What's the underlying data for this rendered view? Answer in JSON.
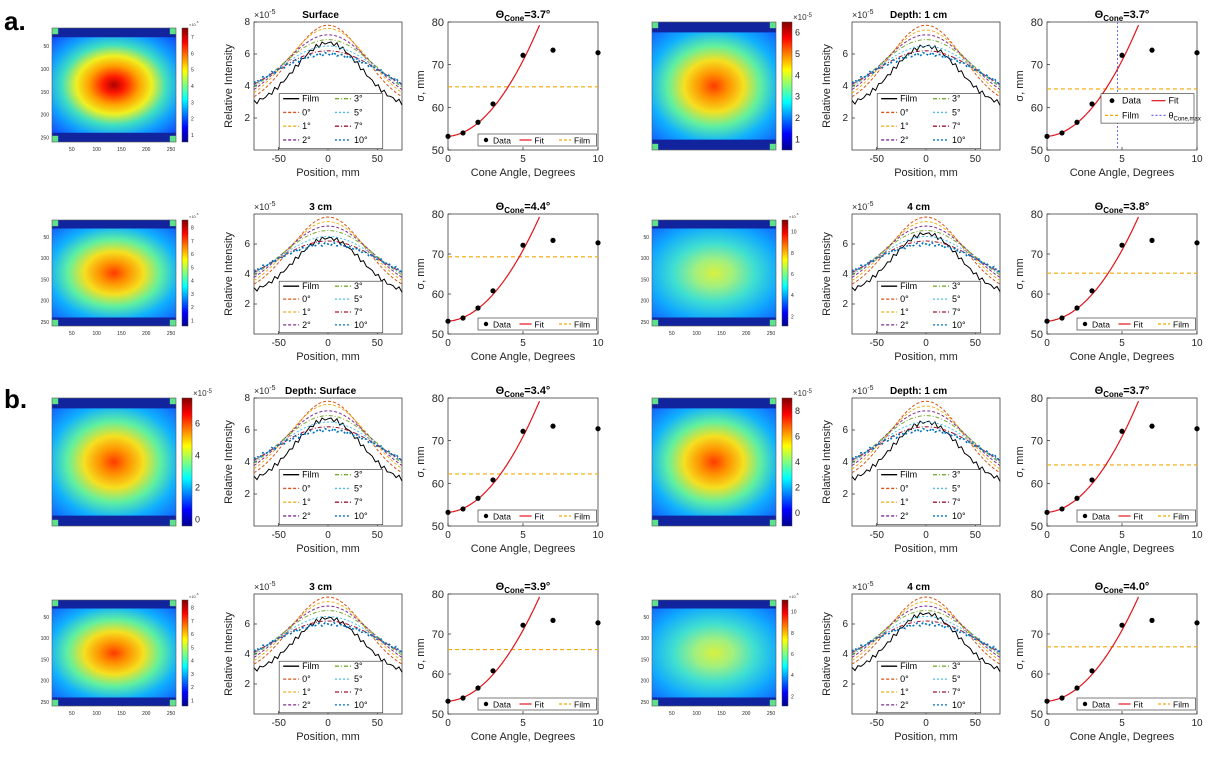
{
  "panel_labels": [
    "a.",
    "b."
  ],
  "axis_labels": {
    "profile_x": "Position, mm",
    "profile_y": "Relative Intensity",
    "profile_scale": "×10",
    "profile_scale_exp": "-5",
    "fit_x": "Cone Angle, Degrees",
    "fit_y": "σ, mm",
    "theta_prefix": "Θ",
    "theta_sub": "Cone",
    "theta_max_sub": "Cone,max"
  },
  "legend": {
    "profile_entries": [
      "Film",
      "0°",
      "1°",
      "2°",
      "3°",
      "5°",
      "7°",
      "10°"
    ],
    "fit_entries": [
      "Data",
      "Fit",
      "Film"
    ],
    "fit_entry_theta_max": "θ",
    "heatmap_exp": "×10",
    "heatmap_exp_power": "-5"
  },
  "colors": {
    "film": "#000000",
    "fit": "#e3131b",
    "film_dashed": "#f2a900",
    "theta_max_line": "#6a6aff",
    "cone_0": "#d95319",
    "cone_1": "#edb120",
    "cone_2": "#7e2f8e",
    "cone_3": "#77ac30",
    "cone_5": "#4dbeee",
    "cone_7": "#a2142f",
    "cone_10": "#0072bd"
  },
  "chart_data": [
    {
      "type": "heatmap",
      "panel": "a",
      "depth": "Surface",
      "colorbar_ticks": [
        "1",
        "2",
        "3",
        "4",
        "5",
        "6",
        "7"
      ],
      "x_ticks": [
        "50",
        "100",
        "150",
        "200",
        "250"
      ],
      "y_ticks": [
        "50",
        "100",
        "150",
        "200",
        "250"
      ]
    },
    {
      "type": "line",
      "panel": "a",
      "title": "Surface",
      "xlim": [
        -75,
        75
      ],
      "ylim": [
        0,
        8
      ],
      "x_ticks": [
        "-50",
        "0",
        "50"
      ],
      "y_ticks": [
        "2",
        "4",
        "6",
        "8"
      ],
      "series": [
        {
          "name": "Film",
          "peak": 6.7
        },
        {
          "name": "0°",
          "peak": 7.8
        },
        {
          "name": "1°",
          "peak": 7.6
        },
        {
          "name": "2°",
          "peak": 7.2
        },
        {
          "name": "3°",
          "peak": 6.9
        },
        {
          "name": "5°",
          "peak": 6.5
        },
        {
          "name": "7°",
          "peak": 6.2
        },
        {
          "name": "10°",
          "peak": 6.0
        }
      ]
    },
    {
      "type": "scatter",
      "panel": "a",
      "title_value": "=3.7°",
      "xlim": [
        0,
        10
      ],
      "ylim": [
        50,
        80
      ],
      "x_ticks": [
        "0",
        "5",
        "10"
      ],
      "y_ticks": [
        "50",
        "60",
        "70",
        "80"
      ],
      "x": [
        0,
        1,
        2,
        3,
        5,
        7,
        10
      ],
      "y": [
        53.2,
        54.0,
        56.5,
        60.8,
        72.2,
        73.4,
        72.8
      ],
      "film_sigma": 64.8,
      "legend_style": "inline"
    },
    {
      "type": "heatmap",
      "panel": "a",
      "depth": "Depth: 1 cm",
      "colorbar_ticks": [
        "1",
        "2",
        "3",
        "4",
        "5",
        "6"
      ],
      "x_ticks": [],
      "y_ticks": []
    },
    {
      "type": "line",
      "panel": "a",
      "title": "Depth: 1 cm",
      "xlim": [
        -75,
        75
      ],
      "ylim": [
        0,
        8
      ],
      "x_ticks": [
        "-50",
        "0",
        "50"
      ],
      "y_ticks": [
        "2",
        "4",
        "6"
      ],
      "series": [
        {
          "name": "Film",
          "peak": 6.5
        },
        {
          "name": "0°",
          "peak": 7.8
        },
        {
          "name": "1°",
          "peak": 7.5
        },
        {
          "name": "2°",
          "peak": 7.2
        },
        {
          "name": "3°",
          "peak": 6.9
        },
        {
          "name": "5°",
          "peak": 6.5
        },
        {
          "name": "7°",
          "peak": 6.2
        },
        {
          "name": "10°",
          "peak": 6.0
        }
      ]
    },
    {
      "type": "scatter",
      "panel": "a",
      "title_value": "=3.7°",
      "xlim": [
        0,
        10
      ],
      "ylim": [
        50,
        80
      ],
      "x_ticks": [
        "0",
        "5",
        "10"
      ],
      "y_ticks": [
        "50",
        "60",
        "70",
        "80"
      ],
      "x": [
        0,
        1,
        2,
        3,
        5,
        7,
        10
      ],
      "y": [
        53.2,
        54.0,
        56.5,
        60.8,
        72.2,
        73.4,
        72.8
      ],
      "film_sigma": 64.3,
      "theta_max": 4.7,
      "legend_style": "grid"
    },
    {
      "type": "heatmap",
      "panel": "a",
      "depth": "3 cm",
      "colorbar_ticks": [
        "1",
        "2",
        "3",
        "4",
        "5",
        "6",
        "7",
        "8"
      ],
      "x_ticks": [
        "50",
        "100",
        "150",
        "200",
        "250"
      ],
      "y_ticks": [
        "50",
        "100",
        "150",
        "200",
        "250"
      ]
    },
    {
      "type": "line",
      "panel": "a",
      "title": "3 cm",
      "xlim": [
        -75,
        75
      ],
      "ylim": [
        0,
        8
      ],
      "x_ticks": [
        "-50",
        "0",
        "50"
      ],
      "y_ticks": [
        "2",
        "4",
        "6"
      ],
      "series": [
        {
          "name": "Film",
          "peak": 6.4
        },
        {
          "name": "0°",
          "peak": 7.8
        },
        {
          "name": "1°",
          "peak": 7.5
        },
        {
          "name": "2°",
          "peak": 7.2
        },
        {
          "name": "3°",
          "peak": 6.9
        },
        {
          "name": "5°",
          "peak": 6.5
        },
        {
          "name": "7°",
          "peak": 6.2
        },
        {
          "name": "10°",
          "peak": 6.0
        }
      ]
    },
    {
      "type": "scatter",
      "panel": "a",
      "title_value": "=4.4°",
      "xlim": [
        0,
        10
      ],
      "ylim": [
        50,
        80
      ],
      "x_ticks": [
        "0",
        "5",
        "10"
      ],
      "y_ticks": [
        "50",
        "60",
        "70",
        "80"
      ],
      "x": [
        0,
        1,
        2,
        3,
        5,
        7,
        10
      ],
      "y": [
        53.2,
        54.0,
        56.5,
        60.8,
        72.2,
        73.4,
        72.8
      ],
      "film_sigma": 69.3,
      "legend_style": "inline"
    },
    {
      "type": "heatmap",
      "panel": "a",
      "depth": "4 cm",
      "colorbar_ticks": [
        "2",
        "4",
        "6",
        "8",
        "10"
      ],
      "x_ticks": [
        "50",
        "100",
        "150",
        "200",
        "250"
      ],
      "y_ticks": [
        "50",
        "100",
        "150",
        "200",
        "250"
      ]
    },
    {
      "type": "line",
      "panel": "a",
      "title": "4 cm",
      "xlim": [
        -75,
        75
      ],
      "ylim": [
        0,
        8
      ],
      "x_ticks": [
        "-50",
        "0",
        "50"
      ],
      "y_ticks": [
        "2",
        "4",
        "6"
      ],
      "series": [
        {
          "name": "Film",
          "peak": 6.7
        },
        {
          "name": "0°",
          "peak": 7.8
        },
        {
          "name": "1°",
          "peak": 7.5
        },
        {
          "name": "2°",
          "peak": 7.2
        },
        {
          "name": "3°",
          "peak": 6.9
        },
        {
          "name": "5°",
          "peak": 6.5
        },
        {
          "name": "7°",
          "peak": 6.2
        },
        {
          "name": "10°",
          "peak": 6.0
        }
      ]
    },
    {
      "type": "scatter",
      "panel": "a",
      "title_value": "=3.8°",
      "xlim": [
        0,
        10
      ],
      "ylim": [
        50,
        80
      ],
      "x_ticks": [
        "0",
        "5",
        "10"
      ],
      "y_ticks": [
        "50",
        "60",
        "70",
        "80"
      ],
      "x": [
        0,
        1,
        2,
        3,
        5,
        7,
        10
      ],
      "y": [
        53.2,
        54.0,
        56.5,
        60.8,
        72.2,
        73.4,
        72.8
      ],
      "film_sigma": 65.2,
      "legend_style": "inline"
    },
    {
      "type": "heatmap",
      "panel": "b",
      "depth": "Depth: Surface",
      "colorbar_ticks": [
        "0",
        "2",
        "4",
        "6"
      ],
      "x_ticks": [],
      "y_ticks": []
    },
    {
      "type": "line",
      "panel": "b",
      "title": "Depth: Surface",
      "xlim": [
        -75,
        75
      ],
      "ylim": [
        0,
        8
      ],
      "x_ticks": [
        "-50",
        "0",
        "50"
      ],
      "y_ticks": [
        "2",
        "4",
        "6",
        "8"
      ],
      "series": [
        {
          "name": "Film",
          "peak": 6.7
        },
        {
          "name": "0°",
          "peak": 7.8
        },
        {
          "name": "1°",
          "peak": 7.6
        },
        {
          "name": "2°",
          "peak": 7.2
        },
        {
          "name": "3°",
          "peak": 6.9
        },
        {
          "name": "5°",
          "peak": 6.5
        },
        {
          "name": "7°",
          "peak": 6.2
        },
        {
          "name": "10°",
          "peak": 6.0
        }
      ]
    },
    {
      "type": "scatter",
      "panel": "b",
      "title_value": "=3.4°",
      "xlim": [
        0,
        10
      ],
      "ylim": [
        50,
        80
      ],
      "x_ticks": [
        "0",
        "5",
        "10"
      ],
      "y_ticks": [
        "50",
        "60",
        "70",
        "80"
      ],
      "x": [
        0,
        1,
        2,
        3,
        5,
        7,
        10
      ],
      "y": [
        53.2,
        54.0,
        56.5,
        60.8,
        72.2,
        73.4,
        72.8
      ],
      "film_sigma": 62.2,
      "legend_style": "inline"
    },
    {
      "type": "heatmap",
      "panel": "b",
      "depth": "Depth: 1 cm",
      "colorbar_ticks": [
        "0",
        "2",
        "4",
        "6",
        "8"
      ],
      "x_ticks": [],
      "y_ticks": []
    },
    {
      "type": "line",
      "panel": "b",
      "title": "Depth: 1 cm",
      "xlim": [
        -75,
        75
      ],
      "ylim": [
        0,
        8
      ],
      "x_ticks": [
        "-50",
        "0",
        "50"
      ],
      "y_ticks": [
        "2",
        "4",
        "6"
      ],
      "series": [
        {
          "name": "Film",
          "peak": 6.5
        },
        {
          "name": "0°",
          "peak": 7.8
        },
        {
          "name": "1°",
          "peak": 7.5
        },
        {
          "name": "2°",
          "peak": 7.2
        },
        {
          "name": "3°",
          "peak": 6.9
        },
        {
          "name": "5°",
          "peak": 6.5
        },
        {
          "name": "7°",
          "peak": 6.2
        },
        {
          "name": "10°",
          "peak": 6.0
        }
      ]
    },
    {
      "type": "scatter",
      "panel": "b",
      "title_value": "=3.7°",
      "xlim": [
        0,
        10
      ],
      "ylim": [
        50,
        80
      ],
      "x_ticks": [
        "0",
        "5",
        "10"
      ],
      "y_ticks": [
        "50",
        "60",
        "70",
        "80"
      ],
      "x": [
        0,
        1,
        2,
        3,
        5,
        7,
        10
      ],
      "y": [
        53.2,
        54.0,
        56.5,
        60.8,
        72.2,
        73.4,
        72.8
      ],
      "film_sigma": 64.3,
      "legend_style": "inline"
    },
    {
      "type": "heatmap",
      "panel": "b",
      "depth": "3 cm",
      "colorbar_ticks": [
        "1",
        "2",
        "3",
        "4",
        "5",
        "6",
        "7",
        "8"
      ],
      "x_ticks": [
        "50",
        "100",
        "150",
        "200",
        "250"
      ],
      "y_ticks": [
        "50",
        "100",
        "150",
        "200",
        "250"
      ]
    },
    {
      "type": "line",
      "panel": "b",
      "title": "3 cm",
      "xlim": [
        -75,
        75
      ],
      "ylim": [
        0,
        8
      ],
      "x_ticks": [
        "-50",
        "0",
        "50"
      ],
      "y_ticks": [
        "2",
        "4",
        "6"
      ],
      "series": [
        {
          "name": "Film",
          "peak": 6.4
        },
        {
          "name": "0°",
          "peak": 7.8
        },
        {
          "name": "1°",
          "peak": 7.5
        },
        {
          "name": "2°",
          "peak": 7.2
        },
        {
          "name": "3°",
          "peak": 6.9
        },
        {
          "name": "5°",
          "peak": 6.5
        },
        {
          "name": "7°",
          "peak": 6.2
        },
        {
          "name": "10°",
          "peak": 6.0
        }
      ]
    },
    {
      "type": "scatter",
      "panel": "b",
      "title_value": "=3.9°",
      "xlim": [
        0,
        10
      ],
      "ylim": [
        50,
        80
      ],
      "x_ticks": [
        "0",
        "5",
        "10"
      ],
      "y_ticks": [
        "50",
        "60",
        "70",
        "80"
      ],
      "x": [
        0,
        1,
        2,
        3,
        5,
        7,
        10
      ],
      "y": [
        53.2,
        54.0,
        56.5,
        60.8,
        72.2,
        73.4,
        72.8
      ],
      "film_sigma": 66.1,
      "legend_style": "inline"
    },
    {
      "type": "heatmap",
      "panel": "b",
      "depth": "4 cm",
      "colorbar_ticks": [
        "2",
        "4",
        "6",
        "8",
        "10"
      ],
      "x_ticks": [
        "50",
        "100",
        "150",
        "200",
        "250"
      ],
      "y_ticks": [
        "50",
        "100",
        "150",
        "200",
        "250"
      ]
    },
    {
      "type": "line",
      "panel": "b",
      "title": "4 cm",
      "xlim": [
        -75,
        75
      ],
      "ylim": [
        0,
        8
      ],
      "x_ticks": [
        "-50",
        "0",
        "50"
      ],
      "y_ticks": [
        "2",
        "4",
        "6"
      ],
      "series": [
        {
          "name": "Film",
          "peak": 6.7
        },
        {
          "name": "0°",
          "peak": 7.8
        },
        {
          "name": "1°",
          "peak": 7.5
        },
        {
          "name": "2°",
          "peak": 7.2
        },
        {
          "name": "3°",
          "peak": 6.9
        },
        {
          "name": "5°",
          "peak": 6.5
        },
        {
          "name": "7°",
          "peak": 6.2
        },
        {
          "name": "10°",
          "peak": 6.0
        }
      ]
    },
    {
      "type": "scatter",
      "panel": "b",
      "title_value": "=4.0°",
      "xlim": [
        0,
        10
      ],
      "ylim": [
        50,
        80
      ],
      "x_ticks": [
        "0",
        "5",
        "10"
      ],
      "y_ticks": [
        "50",
        "60",
        "70",
        "80"
      ],
      "x": [
        0,
        1,
        2,
        3,
        5,
        7,
        10
      ],
      "y": [
        53.2,
        54.0,
        56.5,
        60.8,
        72.2,
        73.4,
        72.8
      ],
      "film_sigma": 66.8,
      "legend_style": "inline"
    }
  ]
}
